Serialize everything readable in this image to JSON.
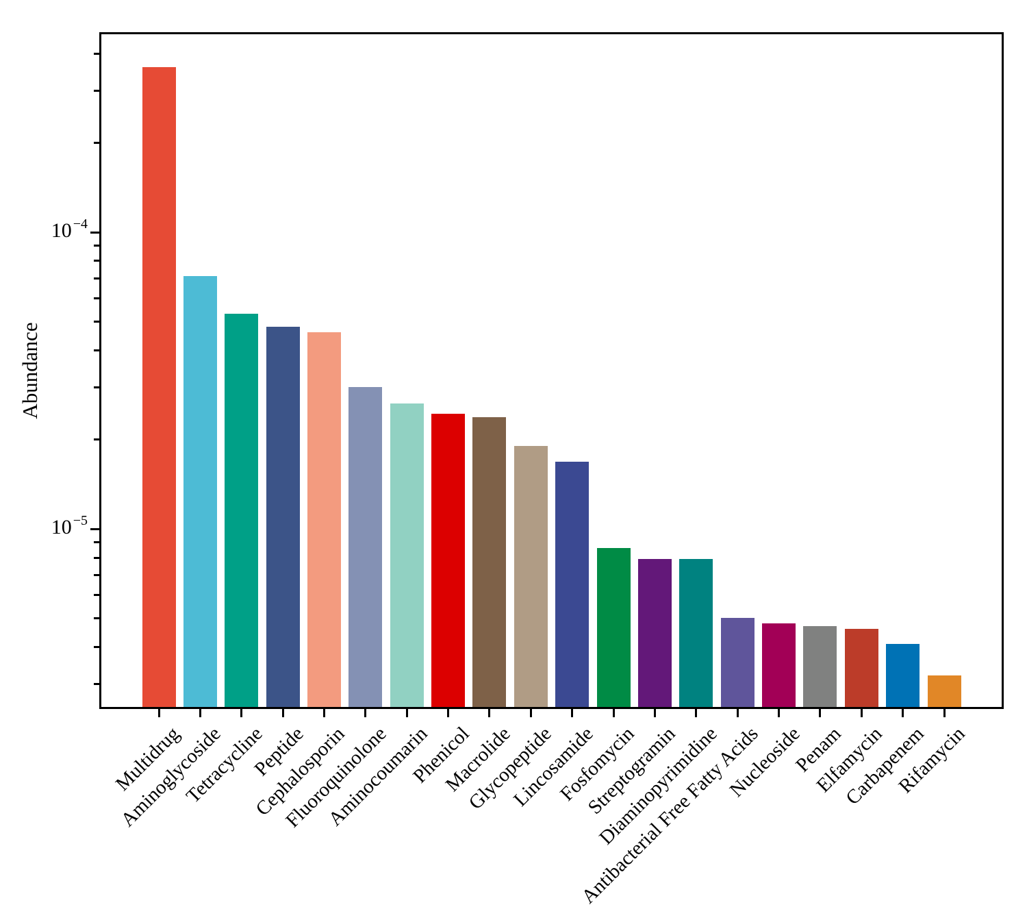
{
  "chart_data": {
    "type": "bar",
    "title": "",
    "xlabel": "",
    "ylabel": "Abundance",
    "yscale": "log",
    "ylim": [
      2.51e-06,
      0.000465
    ],
    "grid": false,
    "legend": "none",
    "ytick_major": [
      {
        "value": 0.0001,
        "base": "10",
        "exponent": "−4"
      },
      {
        "value": 1e-05,
        "base": "10",
        "exponent": "−5"
      }
    ],
    "categories": [
      "Multidrug",
      "Aminoglycoside",
      "Tetracycline",
      "Peptide",
      "Cephalosporin",
      "Fluoroquinolone",
      "Aminocoumarin",
      "Phenicol",
      "Macrolide",
      "Glycopeptide",
      "Lincosamide",
      "Fosfomycin",
      "Streptogramin",
      "Diaminopyrimidine",
      "Antibacterial Free Fatty Acids",
      "Nucleoside",
      "Penam",
      "Elfamycin",
      "Carbapenem",
      "Rifamycin"
    ],
    "values": [
      0.00036,
      7.1e-05,
      5.3e-05,
      4.8e-05,
      4.6e-05,
      3e-05,
      2.65e-05,
      2.44e-05,
      2.38e-05,
      1.9e-05,
      1.68e-05,
      8.6e-06,
      7.9e-06,
      7.9e-06,
      5e-06,
      4.8e-06,
      4.7e-06,
      4.6e-06,
      4.1e-06,
      3.2e-06
    ],
    "colors": [
      "#E64B35",
      "#4DBBD5",
      "#00A087",
      "#3C5488",
      "#F39B7F",
      "#8491B4",
      "#91D1C2",
      "#DC0000",
      "#7E6148",
      "#B09C85",
      "#3B4992",
      "#008B45",
      "#631879",
      "#008280",
      "#5F559B",
      "#A20056",
      "#808180",
      "#BC3C29",
      "#0072B5",
      "#E18727"
    ]
  }
}
